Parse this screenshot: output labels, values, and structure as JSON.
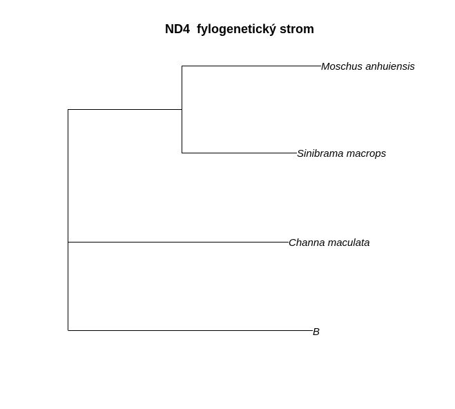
{
  "title": "ND4  fylogenetický strom",
  "tree": {
    "tips": [
      {
        "id": "tip-1",
        "label": "Moschus anhuiensis"
      },
      {
        "id": "tip-2",
        "label": "Sinibrama macrops"
      },
      {
        "id": "tip-3",
        "label": "Channa maculata"
      },
      {
        "id": "tip-4",
        "label": "B"
      }
    ]
  }
}
